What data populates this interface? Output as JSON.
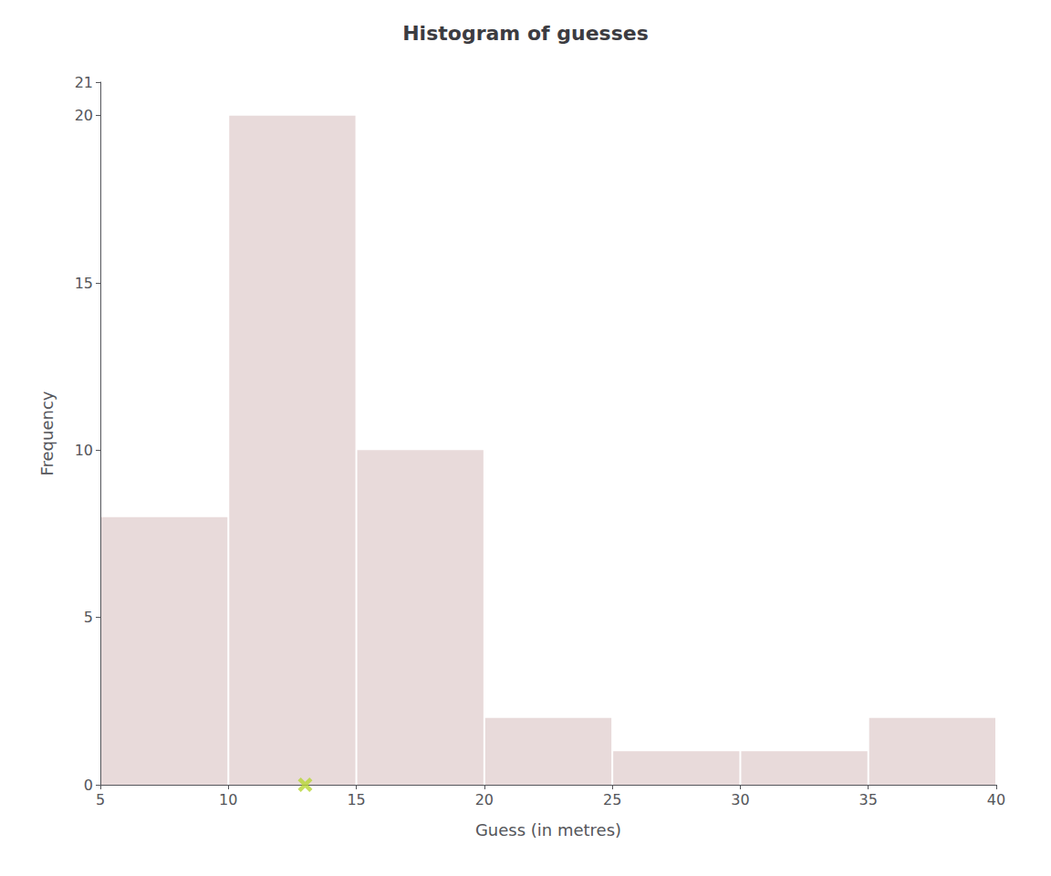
{
  "chart_data": {
    "type": "histogram",
    "title": "Histogram of guesses",
    "xlabel": "Guess (in metres)",
    "ylabel": "Frequency",
    "bins": [
      5,
      10,
      15,
      20,
      25,
      30,
      35,
      40
    ],
    "values": [
      8,
      20,
      10,
      2,
      1,
      1,
      2
    ],
    "color": "#e8dada",
    "actual_value": 13,
    "marker": "x",
    "xlim": [
      5,
      40
    ],
    "xticks": [
      5,
      10,
      15,
      20,
      25,
      30,
      35,
      40
    ],
    "ylim": [
      0,
      21
    ],
    "yticks": [
      0,
      5,
      10,
      15,
      20
    ],
    "grid": false
  }
}
